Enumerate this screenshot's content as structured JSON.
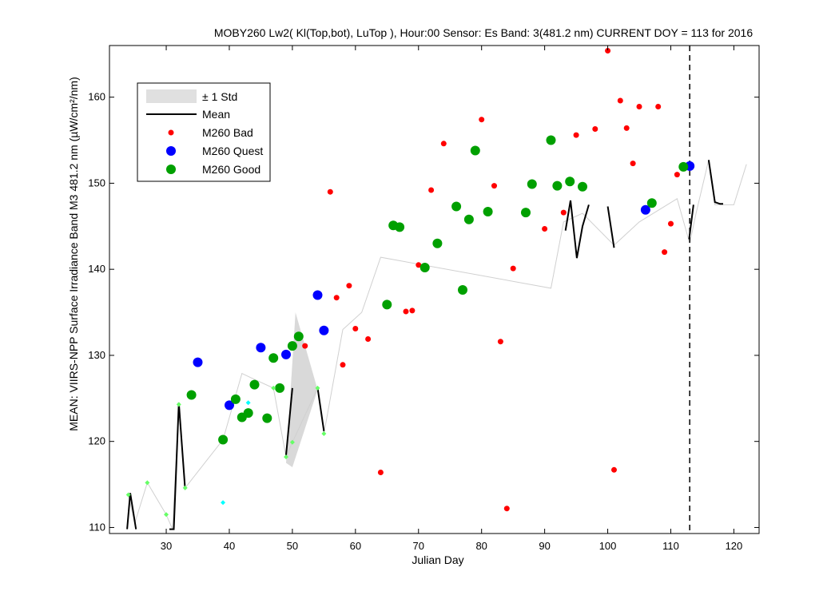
{
  "chart_data": {
    "type": "scatter",
    "title": "MOBY260   Lw2( Kl(Top,bot), LuTop ),   Hour:00 Sensor: Es Band: 3(481.2 nm)   CURRENT DOY = 113 for 2016",
    "xlabel": "Julian Day",
    "ylabel": "MEAN: VIIRS-NPP Surface Irradiance Band M3 481.2 nm (µW/cm²/nm)",
    "xlim": [
      21,
      124
    ],
    "ylim": [
      109.3,
      166
    ],
    "xticks": [
      30,
      40,
      50,
      60,
      70,
      80,
      90,
      100,
      110,
      120
    ],
    "yticks": [
      110,
      120,
      130,
      140,
      150,
      160
    ],
    "grid": false,
    "legend_position": "top-left",
    "current_doy": 113,
    "legend": [
      {
        "label": "± 1 Std",
        "kind": "band",
        "color": "#e0e0e0"
      },
      {
        "label": "Mean",
        "kind": "line",
        "color": "#000000"
      },
      {
        "label": "M260 Bad",
        "kind": "marker",
        "color": "#ff0000"
      },
      {
        "label": "M260 Quest",
        "kind": "marker",
        "color": "#0000ff"
      },
      {
        "label": "M260 Good",
        "kind": "marker",
        "color": "#00a000"
      }
    ],
    "std_band": {
      "color": "#d9d9d9",
      "polygon": [
        [
          49,
          117.5
        ],
        [
          50.5,
          135
        ],
        [
          54,
          126
        ],
        [
          50,
          117
        ]
      ]
    },
    "reference_line": {
      "color": "#d0d0d0",
      "points": [
        [
          24,
          113.8
        ],
        [
          25,
          110.5
        ],
        [
          27,
          115.2
        ],
        [
          30,
          111.5
        ],
        [
          31,
          109.8
        ],
        [
          32,
          124.3
        ],
        [
          33,
          114.6
        ],
        [
          39,
          120.2
        ],
        [
          42,
          127.9
        ],
        [
          44,
          127.2
        ],
        [
          47,
          126.2
        ],
        [
          49,
          118.2
        ],
        [
          50,
          119.9
        ],
        [
          54,
          126.2
        ],
        [
          55,
          120.9
        ],
        [
          58,
          133
        ],
        [
          61,
          135
        ],
        [
          64,
          141.4
        ],
        [
          91,
          137.8
        ],
        [
          93,
          145.5
        ],
        [
          96,
          146.5
        ],
        [
          101,
          142.8
        ],
        [
          105,
          145.5
        ],
        [
          111,
          148.2
        ],
        [
          113,
          143
        ],
        [
          114,
          146.5
        ],
        [
          116,
          152.7
        ],
        [
          117,
          147.5
        ],
        [
          120,
          147.5
        ],
        [
          122,
          152.2
        ]
      ]
    },
    "mean_segments": {
      "color": "#000000",
      "segments": [
        [
          [
            23.8,
            109.8
          ],
          [
            24.3,
            114
          ],
          [
            25.2,
            109.8
          ]
        ],
        [
          [
            30.5,
            109.8
          ],
          [
            31.2,
            109.8
          ],
          [
            32,
            124.5
          ],
          [
            33,
            114.4
          ]
        ],
        [
          [
            49,
            118.4
          ],
          [
            50,
            126.2
          ]
        ],
        [
          [
            54,
            126.2
          ],
          [
            55,
            121.2
          ]
        ],
        [
          [
            93.3,
            144.5
          ],
          [
            94.1,
            148
          ],
          [
            95.1,
            141.3
          ],
          [
            96,
            145
          ],
          [
            97,
            147.5
          ]
        ],
        [
          [
            100,
            147.3
          ],
          [
            101,
            142.5
          ]
        ],
        [
          [
            112.9,
            143.5
          ],
          [
            113.6,
            147.5
          ]
        ],
        [
          [
            116,
            152.7
          ],
          [
            117,
            147.8
          ],
          [
            117.8,
            147.6
          ],
          [
            118.3,
            147.6
          ]
        ]
      ]
    },
    "series": [
      {
        "name": "M260 Bad",
        "color": "#ff0000",
        "size": "small",
        "points": [
          [
            52,
            131.1
          ],
          [
            56,
            149
          ],
          [
            57,
            136.7
          ],
          [
            58,
            128.9
          ],
          [
            59,
            138.1
          ],
          [
            60,
            133.1
          ],
          [
            62,
            131.9
          ],
          [
            64,
            116.4
          ],
          [
            68,
            135.1
          ],
          [
            69,
            135.2
          ],
          [
            70,
            140.5
          ],
          [
            72,
            149.2
          ],
          [
            74,
            154.6
          ],
          [
            80,
            157.4
          ],
          [
            82,
            149.7
          ],
          [
            83,
            131.6
          ],
          [
            84,
            112.2
          ],
          [
            85,
            140.1
          ],
          [
            90,
            144.7
          ],
          [
            93,
            146.6
          ],
          [
            95,
            155.6
          ],
          [
            98,
            156.3
          ],
          [
            100,
            165.4
          ],
          [
            101,
            116.7
          ],
          [
            102,
            159.6
          ],
          [
            103,
            156.4
          ],
          [
            104,
            152.3
          ],
          [
            105,
            158.9
          ],
          [
            108,
            158.9
          ],
          [
            109,
            142
          ],
          [
            110,
            145.3
          ],
          [
            111,
            151
          ]
        ]
      },
      {
        "name": "M260 Quest",
        "color": "#0000ff",
        "size": "large",
        "points": [
          [
            35,
            129.2
          ],
          [
            40,
            124.2
          ],
          [
            45,
            130.9
          ],
          [
            49,
            130.1
          ],
          [
            54,
            137
          ],
          [
            55,
            132.9
          ],
          [
            106,
            146.9
          ],
          [
            113,
            152
          ]
        ]
      },
      {
        "name": "M260 Good",
        "color": "#00a000",
        "size": "large",
        "points": [
          [
            34,
            125.4
          ],
          [
            39,
            120.2
          ],
          [
            41,
            124.9
          ],
          [
            42,
            122.8
          ],
          [
            43,
            123.3
          ],
          [
            44,
            126.6
          ],
          [
            46,
            122.7
          ],
          [
            47,
            129.7
          ],
          [
            48,
            126.2
          ],
          [
            50,
            131.1
          ],
          [
            51,
            132.2
          ],
          [
            65,
            135.9
          ],
          [
            66,
            145.1
          ],
          [
            67,
            144.9
          ],
          [
            71,
            140.2
          ],
          [
            73,
            143
          ],
          [
            76,
            147.3
          ],
          [
            77,
            137.6
          ],
          [
            78,
            145.8
          ],
          [
            79,
            153.8
          ],
          [
            81,
            146.7
          ],
          [
            87,
            146.6
          ],
          [
            88,
            149.9
          ],
          [
            91,
            155
          ],
          [
            92,
            149.7
          ],
          [
            94,
            150.2
          ],
          [
            96,
            149.6
          ],
          [
            107,
            147.7
          ],
          [
            112,
            151.9
          ]
        ]
      },
      {
        "name": "",
        "color": "#66ff66",
        "size": "tiny",
        "points": [
          [
            24,
            113.8
          ],
          [
            27,
            115.2
          ],
          [
            30,
            111.5
          ],
          [
            32,
            124.3
          ],
          [
            33,
            114.6
          ],
          [
            47,
            126.2
          ],
          [
            49,
            118.2
          ],
          [
            50,
            119.9
          ],
          [
            54,
            126.2
          ],
          [
            55,
            120.9
          ]
        ]
      },
      {
        "name": "",
        "color": "#00ffff",
        "size": "tiny",
        "points": [
          [
            39,
            112.9
          ],
          [
            43,
            124.5
          ]
        ]
      }
    ]
  }
}
